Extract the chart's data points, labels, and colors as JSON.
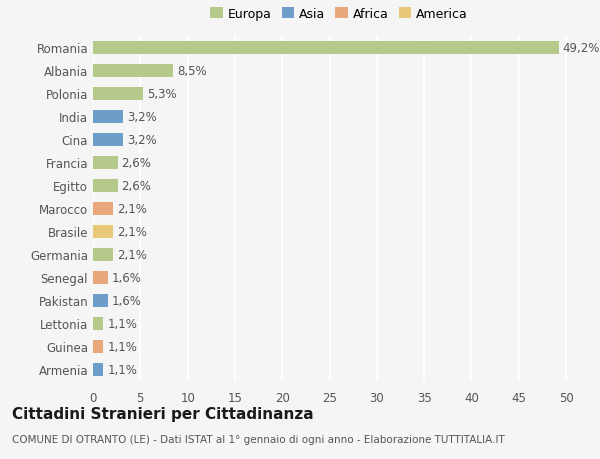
{
  "categories": [
    "Armenia",
    "Guinea",
    "Lettonia",
    "Pakistan",
    "Senegal",
    "Germania",
    "Brasile",
    "Marocco",
    "Egitto",
    "Francia",
    "Cina",
    "India",
    "Polonia",
    "Albania",
    "Romania"
  ],
  "values": [
    1.1,
    1.1,
    1.1,
    1.6,
    1.6,
    2.1,
    2.1,
    2.1,
    2.6,
    2.6,
    3.2,
    3.2,
    5.3,
    8.5,
    49.2
  ],
  "colors": [
    "#6e9dc9",
    "#e8a87c",
    "#b5c98a",
    "#6e9dc9",
    "#e8a87c",
    "#b5c98a",
    "#e8c97a",
    "#e8a87c",
    "#b5c98a",
    "#b5c98a",
    "#6e9dc9",
    "#6e9dc9",
    "#b5c98a",
    "#b5c98a",
    "#b5c98a"
  ],
  "labels": [
    "1,1%",
    "1,1%",
    "1,1%",
    "1,6%",
    "1,6%",
    "2,1%",
    "2,1%",
    "2,1%",
    "2,6%",
    "2,6%",
    "3,2%",
    "3,2%",
    "5,3%",
    "8,5%",
    "49,2%"
  ],
  "legend": [
    {
      "label": "Europa",
      "color": "#b5c98a"
    },
    {
      "label": "Asia",
      "color": "#6e9dc9"
    },
    {
      "label": "Africa",
      "color": "#e8a87c"
    },
    {
      "label": "America",
      "color": "#e8c97a"
    }
  ],
  "xlim": [
    0,
    52
  ],
  "xticks": [
    0,
    5,
    10,
    15,
    20,
    25,
    30,
    35,
    40,
    45,
    50
  ],
  "title": "Cittadini Stranieri per Cittadinanza",
  "subtitle": "COMUNE DI OTRANTO (LE) - Dati ISTAT al 1° gennaio di ogni anno - Elaborazione TUTTITALIA.IT",
  "background_color": "#f5f5f5",
  "bar_height": 0.55,
  "label_fontsize": 8.5,
  "tick_fontsize": 8.5,
  "title_fontsize": 11,
  "subtitle_fontsize": 7.5
}
